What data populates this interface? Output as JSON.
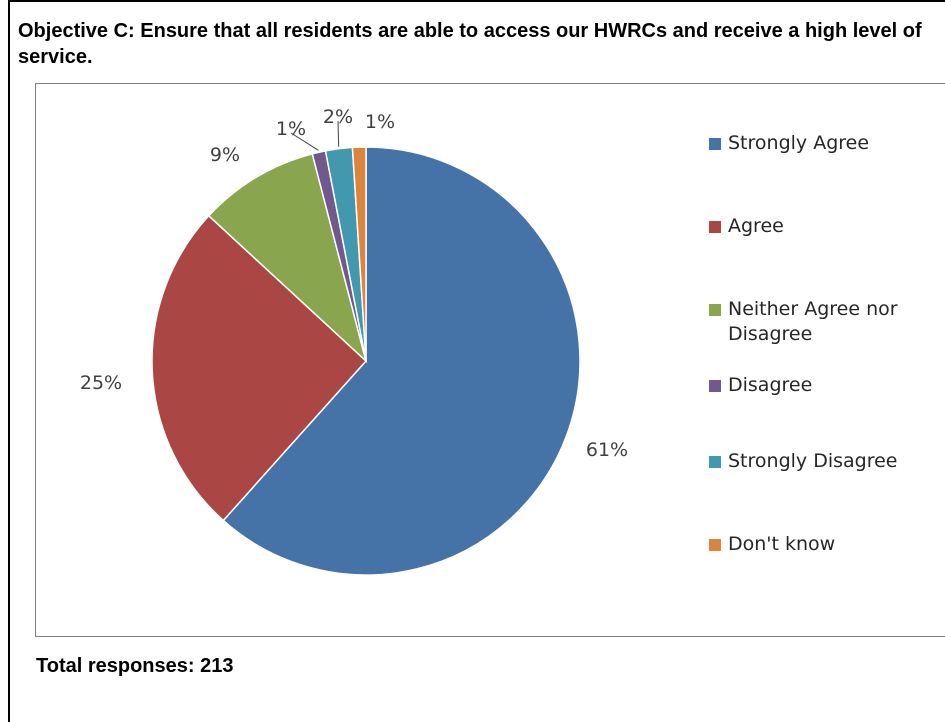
{
  "heading": "Objective C: Ensure that all residents are able to access our HWRCs and receive a high level of service.",
  "total_label": "Total responses: 213",
  "chart_data": {
    "type": "pie",
    "title": "",
    "categories": [
      "Strongly Agree",
      "Agree",
      "Neither Agree nor Disagree",
      "Disagree",
      "Strongly Disagree",
      "Don't know"
    ],
    "values": [
      61,
      25,
      9,
      1,
      2,
      1
    ],
    "labels": [
      "61%",
      "25%",
      "9%",
      "1%",
      "2%",
      "1%"
    ],
    "colors": [
      "#4572a7",
      "#aa4643",
      "#89a54e",
      "#71588f",
      "#4198af",
      "#db843d"
    ],
    "legend_position": "right"
  }
}
